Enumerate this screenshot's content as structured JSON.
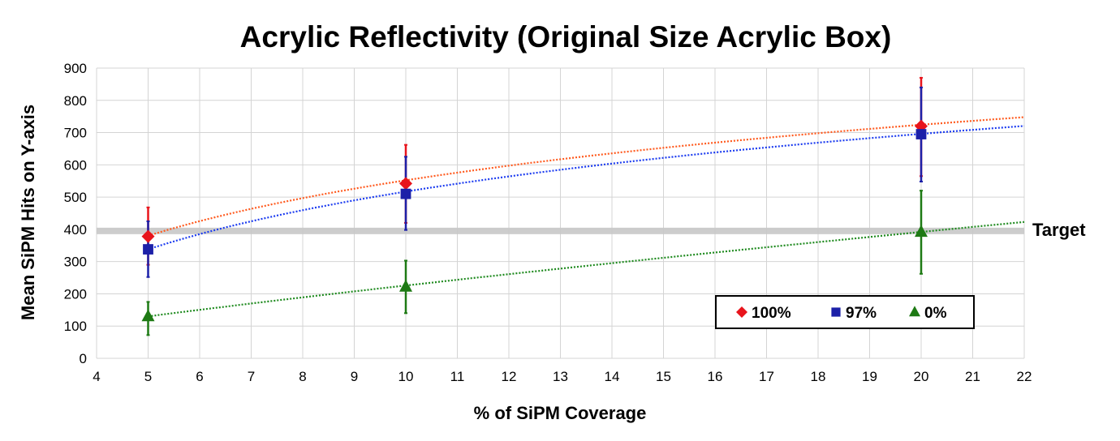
{
  "chart_data": {
    "type": "scatter",
    "title": "Acrylic Reflectivity (Original Size Acrylic Box)",
    "xlabel": "% of SiPM Coverage",
    "ylabel": "Mean SiPM Hits on Y-axis",
    "xlim": [
      4,
      22
    ],
    "ylim": [
      0,
      900
    ],
    "x_ticks": [
      4,
      5,
      6,
      7,
      8,
      9,
      10,
      11,
      12,
      13,
      14,
      15,
      16,
      17,
      18,
      19,
      20,
      21,
      22
    ],
    "y_ticks": [
      0,
      100,
      200,
      300,
      400,
      500,
      600,
      700,
      800,
      900
    ],
    "grid": true,
    "legend_position": "bottom-right",
    "reference_line": {
      "y": 395,
      "label": "Target",
      "color": "#c8c8c8"
    },
    "series": [
      {
        "name": "100%",
        "marker": "diamond",
        "color": "#e8141c",
        "trend_color": "#ff5a1e",
        "x": [
          5,
          10,
          20
        ],
        "y": [
          378,
          542,
          720
        ],
        "error_high": [
          468,
          662,
          870
        ],
        "error_low": [
          290,
          420,
          565
        ],
        "trend": {
          "type": "log",
          "a": 380,
          "b": 248.3
        }
      },
      {
        "name": "97%",
        "marker": "square",
        "color": "#1c20a8",
        "trend_color": "#1c3cf0",
        "x": [
          5,
          10,
          20
        ],
        "y": [
          338,
          510,
          695
        ],
        "error_high": [
          425,
          625,
          840
        ],
        "error_low": [
          252,
          398,
          548
        ],
        "trend": {
          "type": "log",
          "a": 338,
          "b": 258.2
        }
      },
      {
        "name": "0%",
        "marker": "triangle",
        "color": "#1e7a14",
        "trend_color": "#1e8a1e",
        "x": [
          5,
          10,
          20
        ],
        "y": [
          130,
          222,
          392
        ],
        "error_high": [
          175,
          303,
          520
        ],
        "error_low": [
          72,
          140,
          262
        ],
        "trend": {
          "type": "power",
          "a": 130,
          "b": 0.796
        }
      }
    ]
  }
}
